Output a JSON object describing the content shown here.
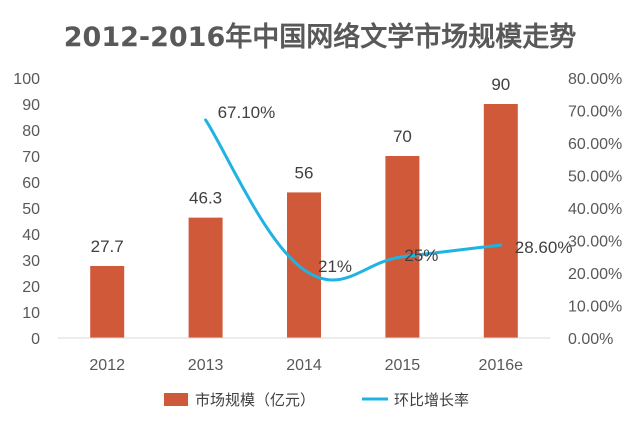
{
  "chart_data": {
    "type": "bar",
    "title": "2012-2016年中国网络文学市场规模走势",
    "categories": [
      "2012",
      "2013",
      "2014",
      "2015",
      "2016e"
    ],
    "y_left": {
      "min": 0,
      "max": 100,
      "step": 10,
      "tick_labels": [
        "0",
        "10",
        "20",
        "30",
        "40",
        "50",
        "60",
        "70",
        "80",
        "90",
        "100"
      ]
    },
    "y_right": {
      "min": 0,
      "max": 80,
      "step": 10,
      "tick_labels": [
        "0.00%",
        "10.00%",
        "20.00%",
        "30.00%",
        "40.00%",
        "50.00%",
        "60.00%",
        "70.00%",
        "80.00%"
      ]
    },
    "series": [
      {
        "name": "市场规模（亿元）",
        "kind": "bar",
        "axis": "left",
        "color": "#D0593A",
        "values": [
          27.7,
          46.3,
          56,
          70,
          90
        ],
        "labels": [
          "27.7",
          "46.3",
          "56",
          "70",
          "90"
        ]
      },
      {
        "name": "环比增长率",
        "kind": "line",
        "axis": "right",
        "color": "#1FB3E3",
        "values": [
          null,
          67.1,
          21,
          25,
          28.6
        ],
        "labels": [
          "",
          "67.10%",
          "21%",
          "25%",
          "28.60%"
        ]
      }
    ],
    "legend": "bottom",
    "grid": false
  }
}
